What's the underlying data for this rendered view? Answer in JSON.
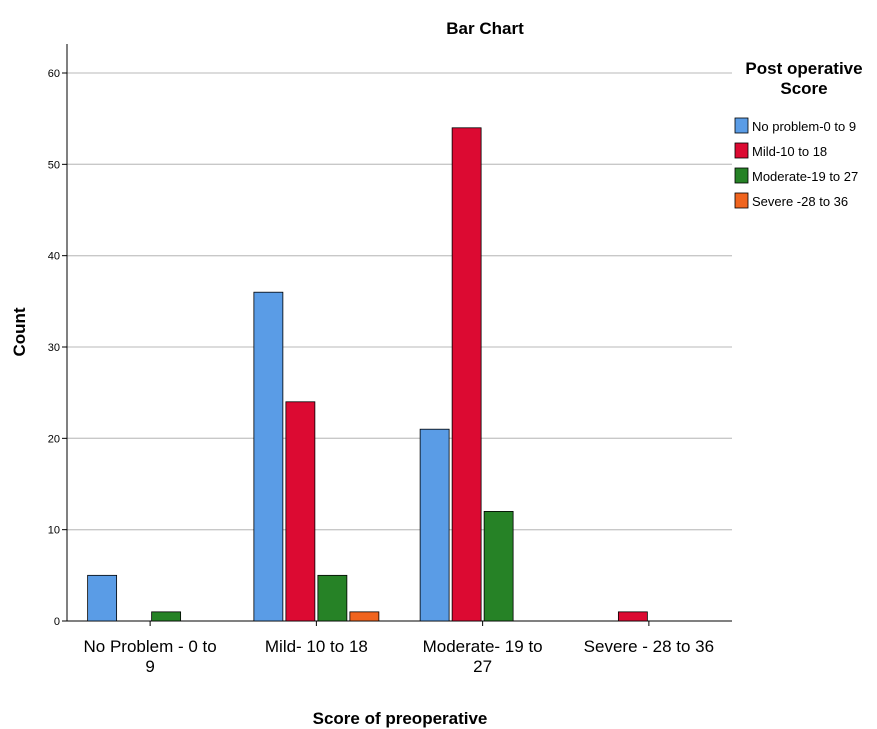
{
  "chart_data": {
    "type": "bar",
    "title": "Bar Chart",
    "xlabel": "Score of preoperative",
    "ylabel": "Count",
    "ylim": [
      0,
      60
    ],
    "yticks": [
      0,
      10,
      20,
      30,
      40,
      50,
      60
    ],
    "grid": true,
    "legend_position": "top-right",
    "legend_title": [
      "Post operative",
      "Score"
    ],
    "categories": [
      [
        "No Problem - 0 to",
        "9"
      ],
      [
        "Mild- 10 to 18"
      ],
      [
        "Moderate- 19 to",
        "27"
      ],
      [
        "Severe - 28 to 36"
      ]
    ],
    "series": [
      {
        "name": "No problem-0 to 9",
        "color": "#5a9ce6",
        "values": [
          5,
          36,
          21,
          0
        ]
      },
      {
        "name": "Mild-10 to 18",
        "color": "#dc0a32",
        "values": [
          0,
          24,
          54,
          1
        ]
      },
      {
        "name": "Moderate-19 to 27",
        "color": "#268226",
        "values": [
          1,
          5,
          12,
          0
        ]
      },
      {
        "name": "Severe -28 to 36",
        "color": "#f0641e",
        "values": [
          0,
          1,
          0,
          0
        ]
      }
    ]
  }
}
